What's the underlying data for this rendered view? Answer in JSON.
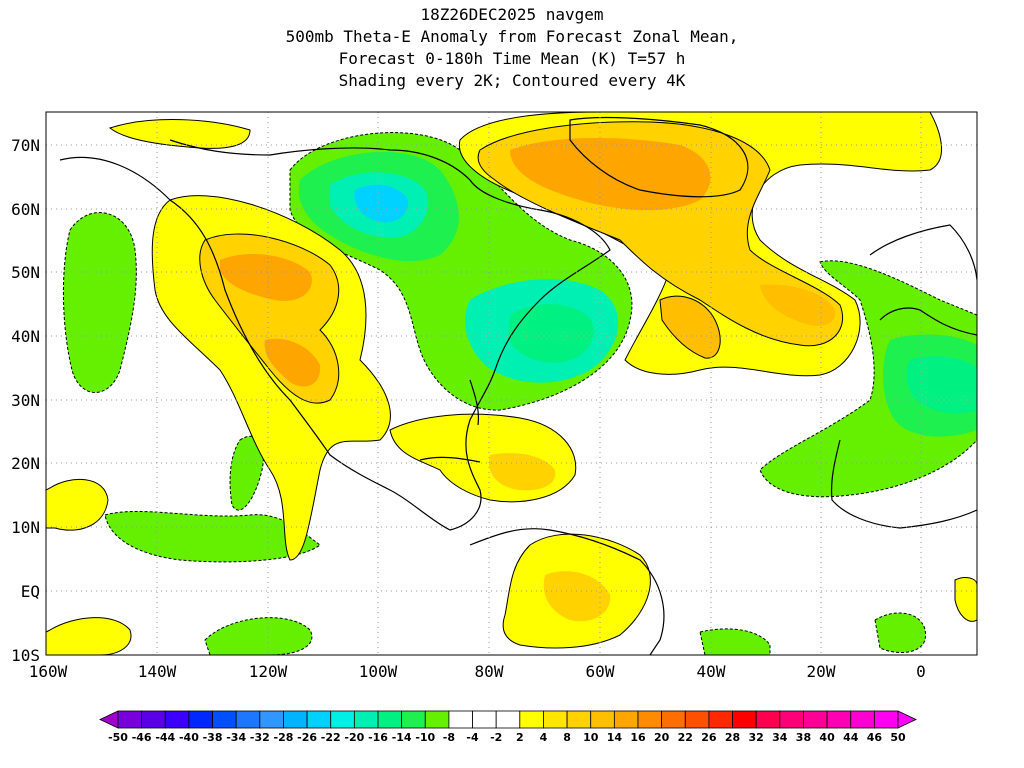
{
  "title": {
    "line1": "18Z26DEC2025 navgem",
    "line2": "500mb Theta-E Anomaly from Forecast Zonal Mean,",
    "line3": "Forecast 0-180h Time Mean (K) T=57 h",
    "line4": "Shading every 2K; Contoured every 4K"
  },
  "axes": {
    "lat_ticks": [
      "70N",
      "60N",
      "50N",
      "40N",
      "30N",
      "20N",
      "10N",
      "EQ",
      "10S"
    ],
    "lon_ticks": [
      "160W",
      "140W",
      "120W",
      "100W",
      "80W",
      "60W",
      "40W",
      "20W",
      "0"
    ]
  },
  "colorbar": {
    "labels": [
      "-50",
      "-46",
      "-44",
      "-40",
      "-38",
      "-34",
      "-32",
      "-28",
      "-26",
      "-22",
      "-20",
      "-16",
      "-14",
      "-10",
      "-8",
      "-4",
      "-2",
      "2",
      "4",
      "8",
      "10",
      "14",
      "16",
      "20",
      "22",
      "26",
      "28",
      "32",
      "34",
      "38",
      "40",
      "44",
      "46",
      "50"
    ],
    "colors": [
      "#a000c8",
      "#7800dc",
      "#5a00e6",
      "#3c00ff",
      "#0028ff",
      "#0050ff",
      "#1e78ff",
      "#3296ff",
      "#00b4ff",
      "#00d2ff",
      "#00f0e6",
      "#00f0b4",
      "#00f082",
      "#1ef050",
      "#64f000",
      "#ffffff",
      "#ffffff",
      "#ffffff",
      "#ffff00",
      "#ffe600",
      "#ffd200",
      "#ffbe00",
      "#ffa500",
      "#ff8c00",
      "#ff6e00",
      "#ff5000",
      "#ff2800",
      "#ff0000",
      "#ff0050",
      "#ff0078",
      "#ff0096",
      "#ff00b4",
      "#ff00d2",
      "#ff00f0",
      "#ff00ff"
    ]
  }
}
